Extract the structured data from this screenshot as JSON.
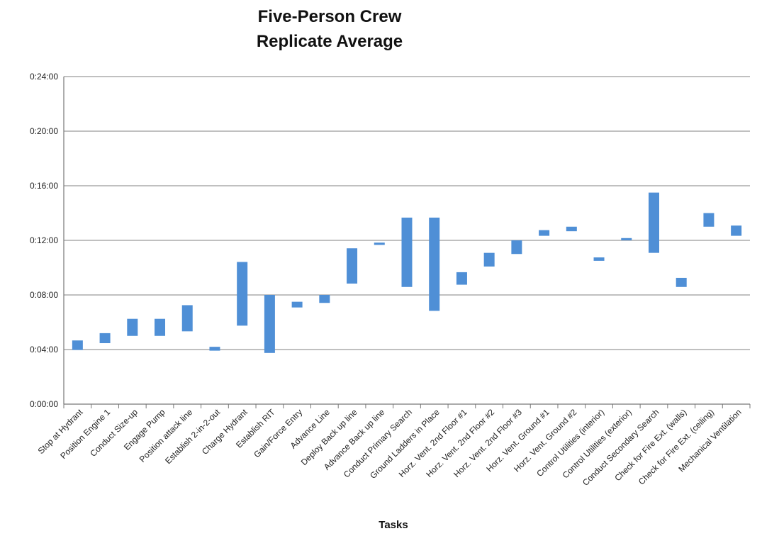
{
  "chart_data": {
    "type": "floating-bar",
    "title": "Five-Person Crew",
    "subtitle": "Replicate Average",
    "xlabel": "Tasks",
    "ylabel": "",
    "y_unit": "h:mm:ss",
    "yticks": [
      "0:00:00",
      "0:04:00",
      "0:08:00",
      "0:12:00",
      "0:16:00",
      "0:20:00",
      "0:24:00"
    ],
    "ylim": [
      "0:00:00",
      "0:24:00"
    ],
    "grid": true,
    "bar_color": "#4f8fd6",
    "categories": [
      "Stop at Hydrant",
      "Position Engine 1",
      "Conduct Size-up",
      "Engage Pump",
      "Position attack line",
      "Establish 2-in-2-out",
      "Charge Hydrant",
      "Establish RIT",
      "Gain/Force Entry",
      "Advance Line",
      "Deploy Back up line",
      "Advance Back up line",
      "Conduct Primary Search",
      "Ground Ladders in Place",
      "Horz. Vent. 2nd Floor #1",
      "Horz. Vent. 2nd Floor #2",
      "Horz. Vent. 2nd Floor #3",
      "Horz. Vent. Ground #1",
      "Horz. Vent. Ground #2",
      "Control Utilities (interior)",
      "Control Utilities (exterior)",
      "Conduct Secondary Search",
      "Check for Fire Ext. (walls)",
      "Check for Fire Ext. (ceiling)",
      "Mechanical Ventilation"
    ],
    "start": [
      "0:03:58",
      "0:04:28",
      "0:05:00",
      "0:05:00",
      "0:05:20",
      "0:03:55",
      "0:05:45",
      "0:03:45",
      "0:07:05",
      "0:07:25",
      "0:08:50",
      "0:11:40",
      "0:08:35",
      "0:06:50",
      "0:08:45",
      "0:10:05",
      "0:11:00",
      "0:12:20",
      "0:12:40",
      "0:10:30",
      "0:12:00",
      "0:11:05",
      "0:08:35",
      "0:13:00",
      "0:12:20"
    ],
    "end": [
      "0:04:40",
      "0:05:12",
      "0:06:15",
      "0:06:15",
      "0:07:15",
      "0:04:12",
      "0:10:25",
      "0:08:00",
      "0:07:30",
      "0:08:00",
      "0:11:25",
      "0:11:50",
      "0:13:40",
      "0:13:40",
      "0:09:40",
      "0:11:05",
      "0:12:00",
      "0:12:45",
      "0:13:00",
      "0:10:45",
      "0:12:10",
      "0:15:30",
      "0:09:15",
      "0:14:00",
      "0:13:05"
    ]
  }
}
